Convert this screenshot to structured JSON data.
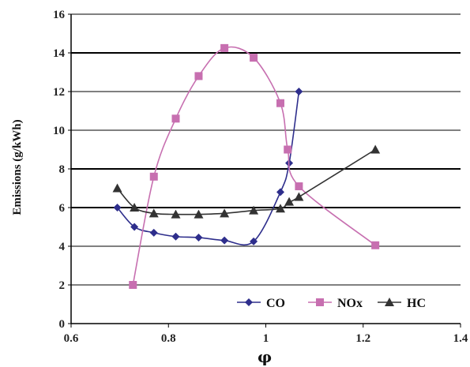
{
  "chart_data": {
    "type": "line",
    "title": "",
    "xlabel": "φ",
    "ylabel": "Emissions (g/kWh)",
    "xlim": [
      0.6,
      1.4
    ],
    "ylim": [
      0,
      16
    ],
    "x_ticks": [
      "0.6",
      "0.8",
      "1",
      "1.2",
      "1.4"
    ],
    "y_ticks": [
      "0",
      "2",
      "4",
      "6",
      "8",
      "10",
      "12",
      "14",
      "16"
    ],
    "grid": "horizontal",
    "legend_position": "bottom-right",
    "series": [
      {
        "name": "CO",
        "color": "#2e2e8c",
        "marker": "diamond",
        "points": [
          [
            0.695,
            6.0
          ],
          [
            0.73,
            5.0
          ],
          [
            0.77,
            4.7
          ],
          [
            0.815,
            4.5
          ],
          [
            0.862,
            4.45
          ],
          [
            0.915,
            4.3
          ],
          [
            0.975,
            4.25
          ],
          [
            1.03,
            6.8
          ],
          [
            1.048,
            8.3
          ],
          [
            1.068,
            12.0
          ]
        ]
      },
      {
        "name": "NOx",
        "color": "#c76fb0",
        "marker": "square",
        "points": [
          [
            0.727,
            2.0
          ],
          [
            0.77,
            7.6
          ],
          [
            0.815,
            10.6
          ],
          [
            0.862,
            12.8
          ],
          [
            0.915,
            14.25
          ],
          [
            0.975,
            13.75
          ],
          [
            1.03,
            11.4
          ],
          [
            1.045,
            9.0
          ],
          [
            1.068,
            7.1
          ],
          [
            1.225,
            4.05
          ]
        ]
      },
      {
        "name": "HC",
        "color": "#333333",
        "marker": "triangle",
        "points": [
          [
            0.695,
            7.0
          ],
          [
            0.73,
            6.0
          ],
          [
            0.77,
            5.7
          ],
          [
            0.815,
            5.65
          ],
          [
            0.862,
            5.65
          ],
          [
            0.915,
            5.7
          ],
          [
            0.975,
            5.85
          ],
          [
            1.03,
            5.95
          ],
          [
            1.048,
            6.3
          ],
          [
            1.068,
            6.55
          ],
          [
            1.225,
            9.0
          ]
        ]
      }
    ]
  }
}
